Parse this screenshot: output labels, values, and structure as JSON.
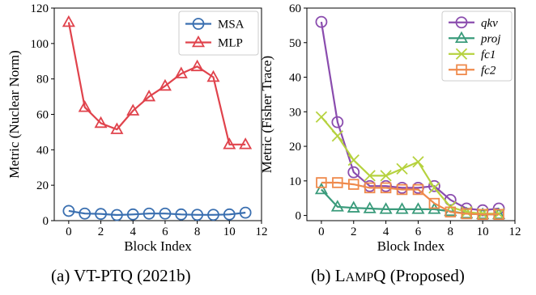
{
  "chart_data": [
    {
      "type": "line",
      "xlabel": "Block Index",
      "ylabel": "Metric (Nuclear Norm)",
      "xlim": [
        -0.9,
        12
      ],
      "ylim": [
        0,
        120
      ],
      "xticks": [
        0,
        2,
        4,
        6,
        8,
        10,
        12
      ],
      "yticks": [
        0,
        20,
        40,
        60,
        80,
        100,
        120
      ],
      "grid": false,
      "legend_position": "top-right",
      "x": [
        0,
        1,
        2,
        3,
        4,
        5,
        6,
        7,
        8,
        9,
        10,
        11
      ],
      "series": [
        {
          "name": "MSA",
          "color": "#3a6fb0",
          "marker": "circle",
          "values": [
            5.5,
            4.0,
            3.8,
            3.2,
            3.5,
            4.0,
            4.0,
            3.5,
            3.3,
            3.3,
            3.5,
            4.5
          ]
        },
        {
          "name": "MLP",
          "color": "#e0434c",
          "marker": "triangle",
          "values": [
            112,
            64,
            55,
            51.5,
            62,
            70,
            76,
            83,
            87,
            81,
            43,
            43
          ]
        }
      ],
      "caption": "(a) VT-PTQ (2021b)"
    },
    {
      "type": "line",
      "xlabel": "Block Index",
      "ylabel": "Metric (Fisher Trace)",
      "xlim": [
        -0.9,
        12
      ],
      "ylim": [
        -1.5,
        60
      ],
      "xticks": [
        0,
        2,
        4,
        6,
        8,
        10,
        12
      ],
      "yticks": [
        0,
        10,
        20,
        30,
        40,
        50,
        60
      ],
      "grid": false,
      "legend_position": "top-right",
      "legend_italic": true,
      "x": [
        0,
        1,
        2,
        3,
        4,
        5,
        6,
        7,
        8,
        9,
        10,
        11
      ],
      "series": [
        {
          "name": "qkv",
          "color": "#8a4cae",
          "marker": "circle",
          "values": [
            56,
            27,
            12.5,
            8.5,
            8.5,
            8,
            8,
            8.5,
            4.5,
            2,
            1.5,
            2
          ]
        },
        {
          "name": "proj",
          "color": "#3a9b7b",
          "marker": "triangle",
          "values": [
            7.5,
            2.5,
            2.2,
            2,
            1.8,
            1.8,
            1.8,
            1.8,
            1.2,
            0.5,
            0.3,
            0.3
          ]
        },
        {
          "name": "fc1",
          "color": "#b6d23f",
          "marker": "x",
          "values": [
            28.5,
            23,
            16,
            11.5,
            11.5,
            13.5,
            15.5,
            8,
            2.5,
            1,
            0.5,
            0.5
          ]
        },
        {
          "name": "fc2",
          "color": "#ef8a4c",
          "marker": "square",
          "values": [
            9.5,
            9.5,
            9,
            8,
            8,
            7.5,
            7.5,
            3.5,
            1,
            0.5,
            0.3,
            0.3
          ]
        }
      ],
      "caption_parts": [
        "(b) L",
        "AMP",
        "Q",
        " (Proposed)"
      ]
    }
  ]
}
